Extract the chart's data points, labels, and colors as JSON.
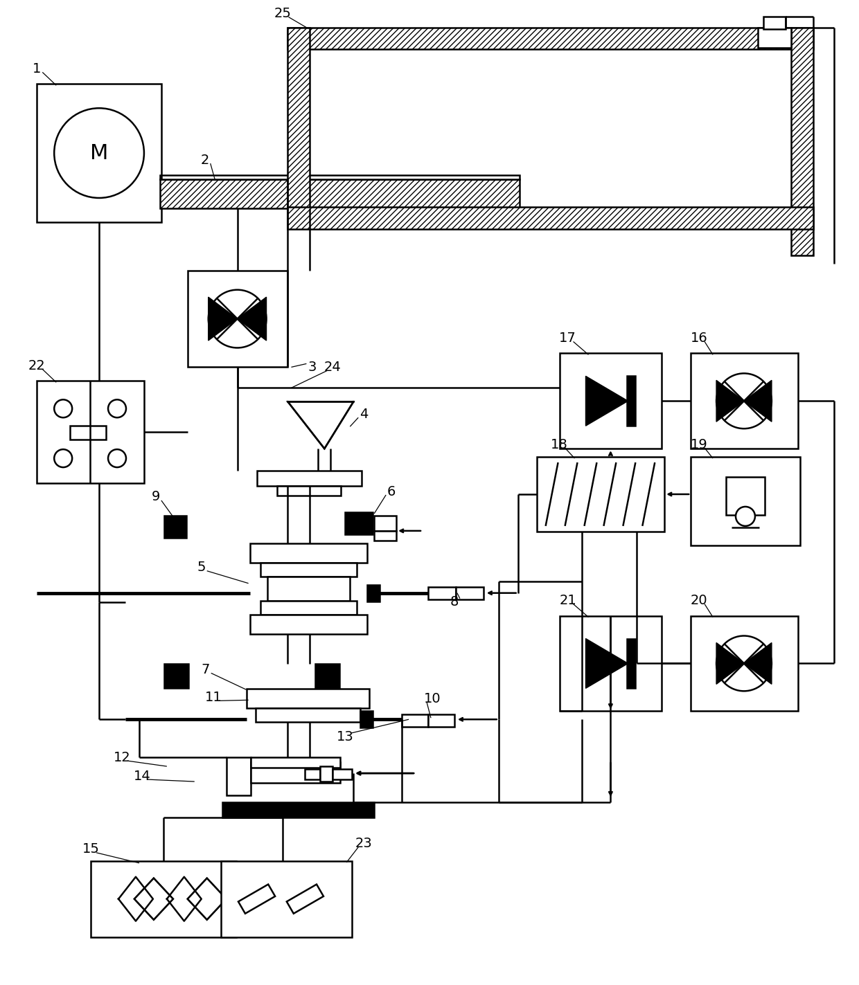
{
  "background": "#ffffff",
  "line_color": "#000000",
  "line_width": 1.8,
  "fig_w": 12.4,
  "fig_h": 14.23,
  "dpi": 100
}
